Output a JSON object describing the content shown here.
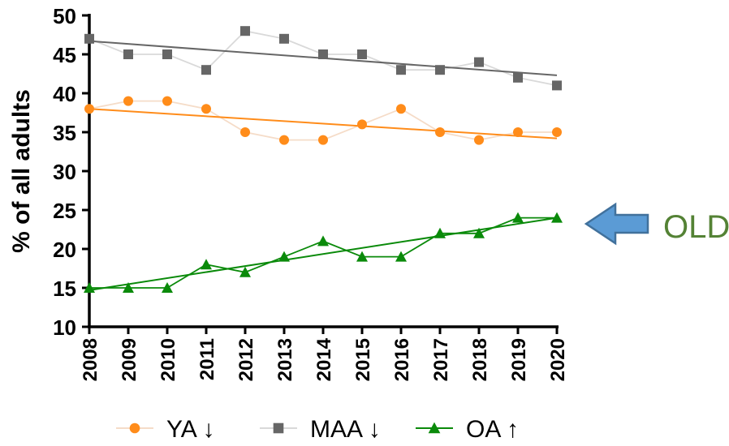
{
  "chart_data": {
    "type": "line",
    "x": [
      2008,
      2009,
      2010,
      2011,
      2012,
      2013,
      2014,
      2015,
      2016,
      2017,
      2018,
      2019,
      2020
    ],
    "ylabel": "% of all adults",
    "xlabel": "",
    "ylim": [
      10,
      50
    ],
    "yticks": [
      10,
      15,
      20,
      25,
      30,
      35,
      40,
      45,
      50
    ],
    "grid": false,
    "legend_position": "bottom",
    "series": [
      {
        "name": "YA ↓",
        "values": [
          38,
          39,
          39,
          38,
          35,
          34,
          34,
          36,
          38,
          35,
          34,
          35,
          35
        ],
        "trend": [
          38.0,
          34.2
        ],
        "marker": "circle",
        "color": "#ff8c1a",
        "line_color": "#f5dcc8",
        "trend_color": "#ff8c1a"
      },
      {
        "name": "MAA ↓",
        "values": [
          47,
          45,
          45,
          43,
          48,
          47,
          45,
          45,
          43,
          43,
          44,
          42,
          41
        ],
        "trend": [
          46.7,
          42.3
        ],
        "marker": "square",
        "color": "#666666",
        "line_color": "#d9d9d9",
        "trend_color": "#666666"
      },
      {
        "name": "OA ↑",
        "values": [
          15,
          15,
          15,
          18,
          17,
          19,
          21,
          19,
          19,
          22,
          22,
          24,
          24
        ],
        "trend": [
          14.7,
          24.0
        ],
        "marker": "triangle",
        "color": "#0a8a0a",
        "line_color": "#0a8a0a",
        "trend_color": "#0a8a0a"
      }
    ]
  },
  "annotation": {
    "text": "OLD",
    "text_color": "#548235",
    "arrow_color": "#5b9bd5",
    "arrow_outline": "#41719c",
    "points_to": "OA"
  }
}
